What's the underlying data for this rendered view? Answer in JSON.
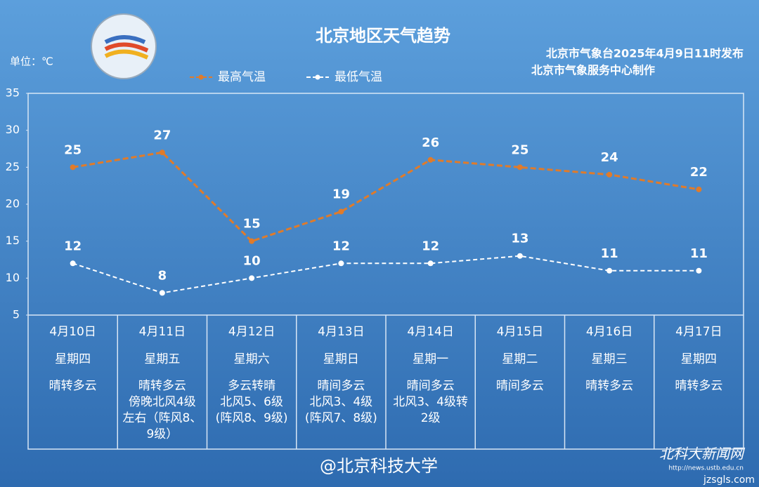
{
  "chart_data": {
    "type": "line",
    "title": "北京地区天气趋势",
    "unit_label": "单位：℃",
    "notes": [
      "北京市气象台2025年4月9日11时发布",
      "北京市气象服务中心制作"
    ],
    "categories": [
      "4月10日",
      "4月11日",
      "4月12日",
      "4月13日",
      "4月14日",
      "4月15日",
      "4月16日",
      "4月17日"
    ],
    "weekdays": [
      "星期四",
      "星期五",
      "星期六",
      "星期日",
      "星期一",
      "星期二",
      "星期三",
      "星期四"
    ],
    "weather": [
      [
        "晴转多云"
      ],
      [
        "晴转多云",
        "傍晚北风4级",
        "左右（阵风8、",
        "9级）"
      ],
      [
        "多云转晴",
        "北风5、6级",
        "(阵风8、9级)"
      ],
      [
        "晴间多云",
        "北风3、4级",
        "(阵风7、8级)"
      ],
      [
        "晴间多云",
        "北风3、4级转",
        "2级"
      ],
      [
        "晴间多云"
      ],
      [
        "晴转多云"
      ],
      [
        "晴转多云"
      ]
    ],
    "series": [
      {
        "name": "最高气温",
        "color": "#e07b2a",
        "values": [
          25,
          27,
          15,
          19,
          26,
          25,
          24,
          22
        ]
      },
      {
        "name": "最低气温",
        "color": "#ffffff",
        "values": [
          12,
          8,
          10,
          12,
          12,
          13,
          11,
          11
        ]
      }
    ],
    "ylim": [
      5,
      35
    ],
    "yticks": [
      5,
      10,
      15,
      20,
      25,
      30,
      35
    ],
    "watermark": "@北京科技大学",
    "site_name": "北科大新闻网",
    "site_url": "http://news.ustb.edu.cn",
    "source": "jzsgls.com"
  }
}
